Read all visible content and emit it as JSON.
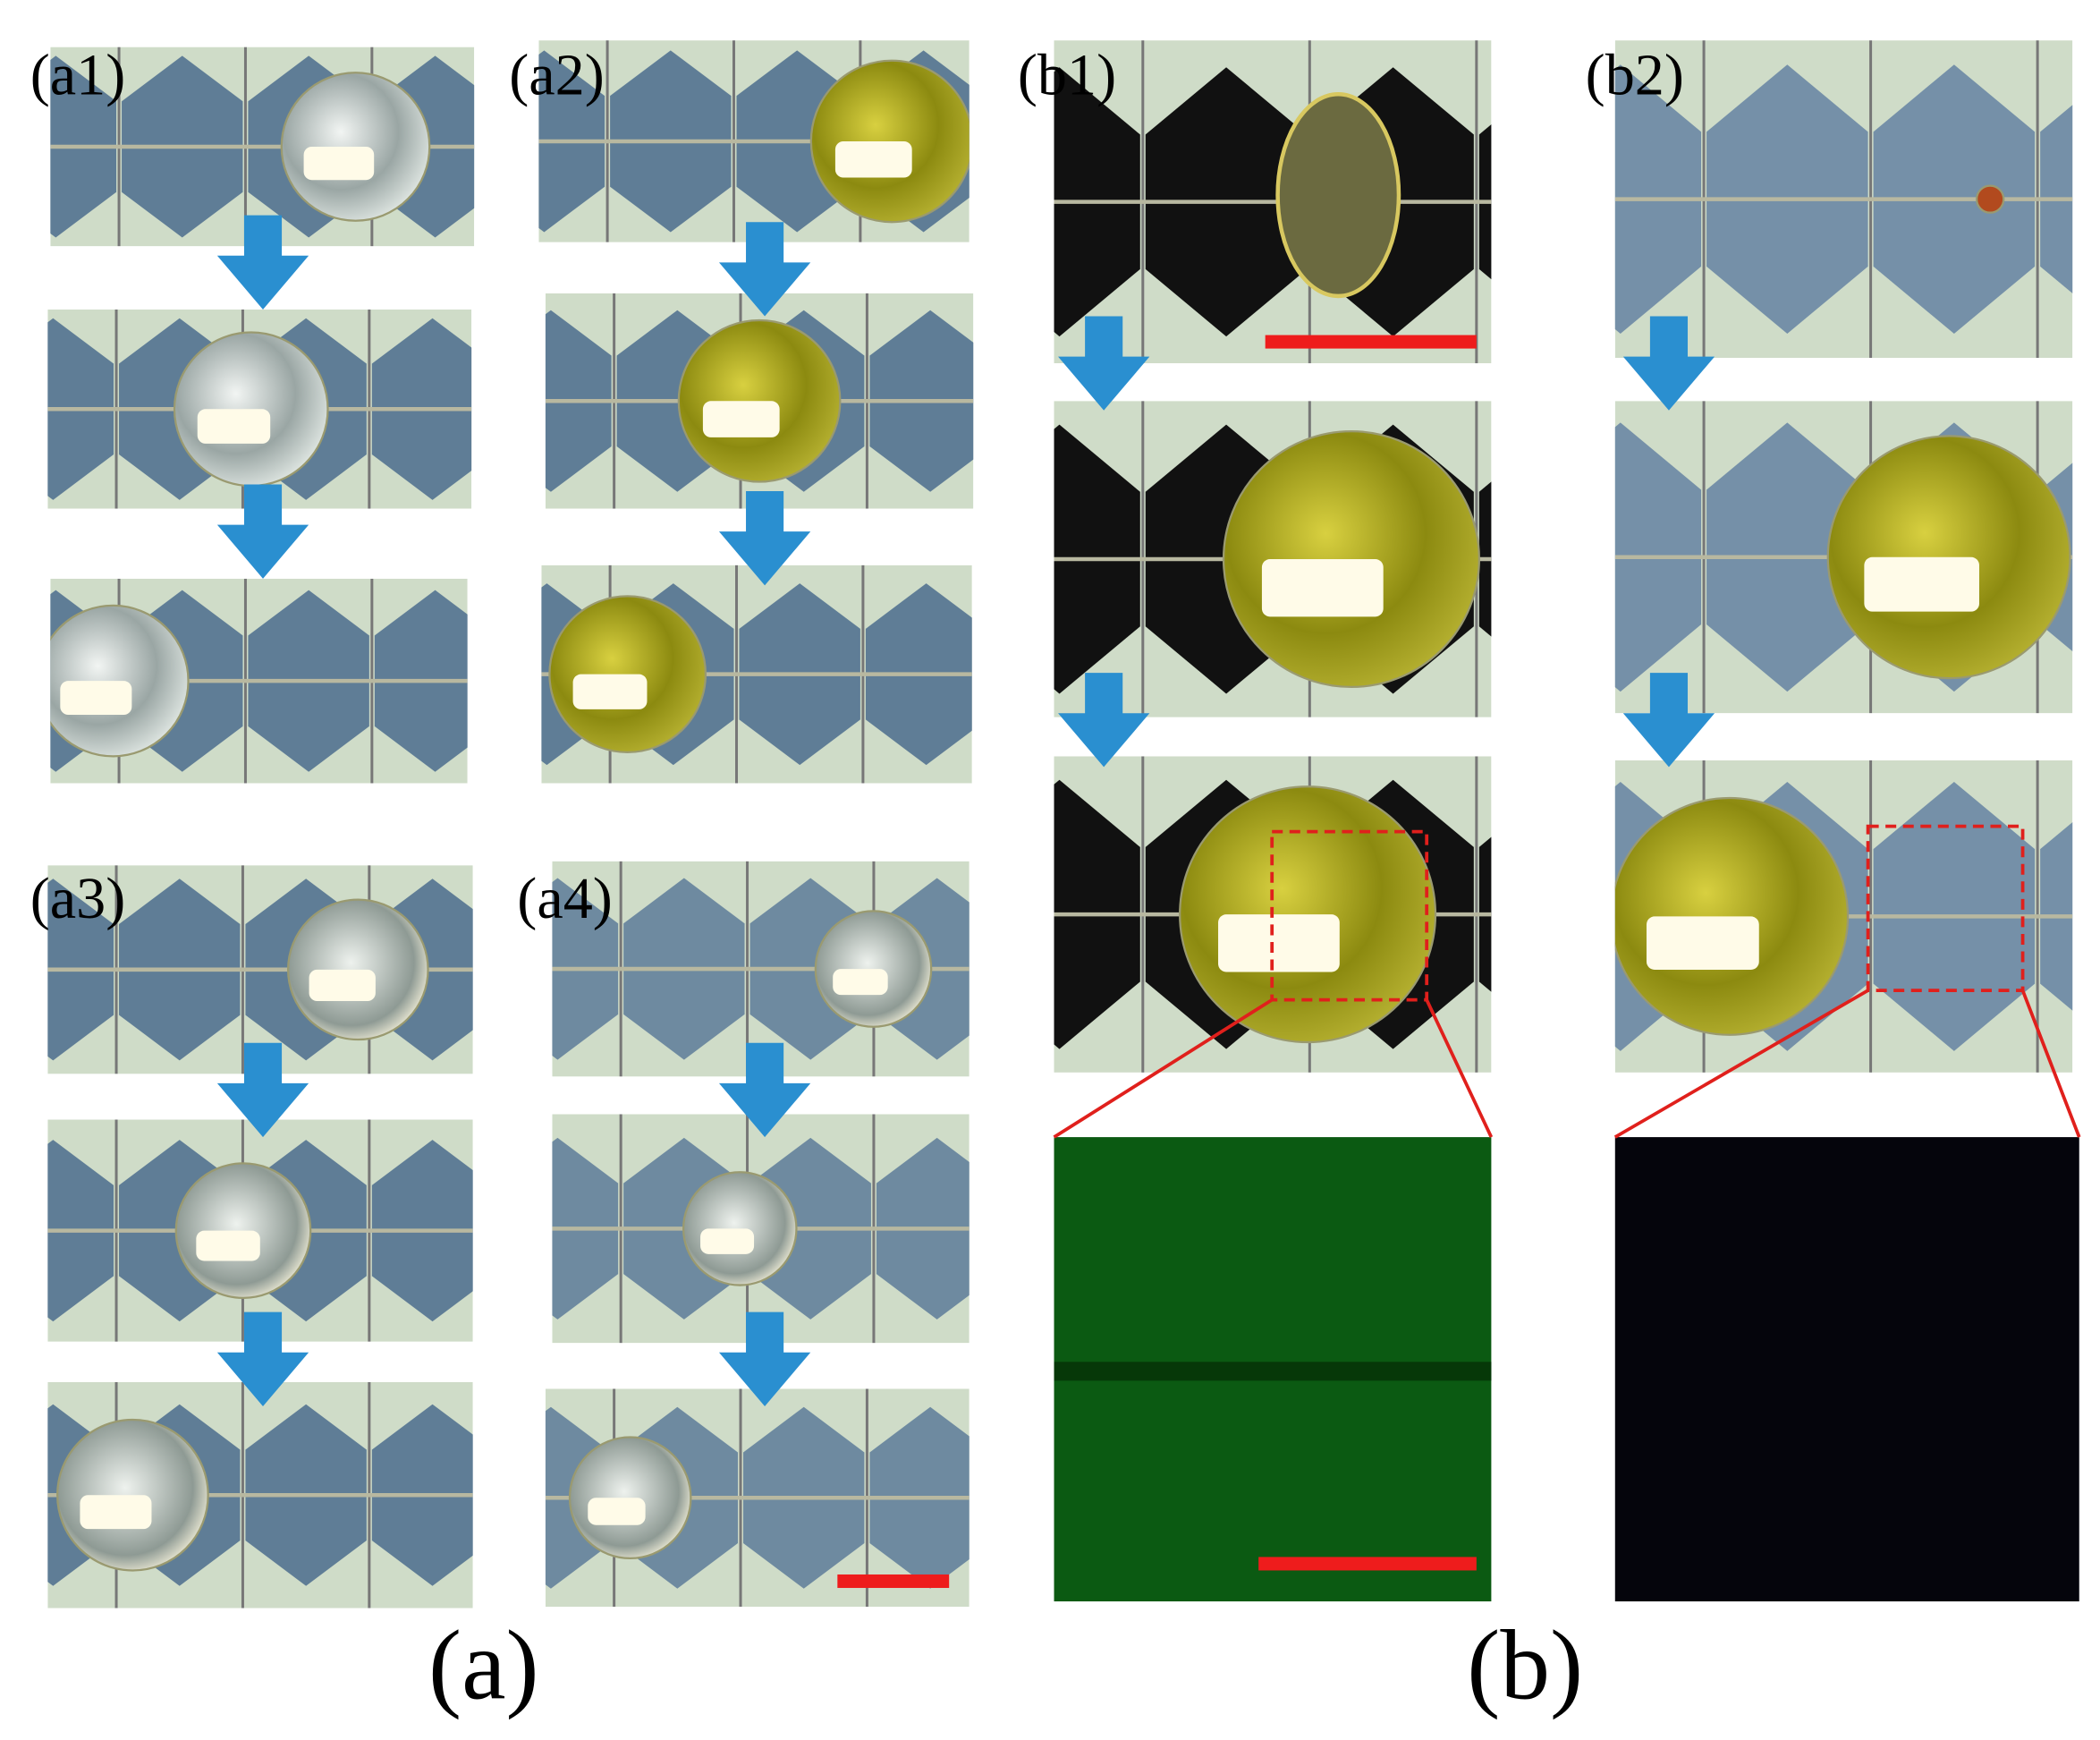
{
  "panel_labels": [
    "(a1)",
    "(a2)",
    "(a3)",
    "(a4)",
    "(b1)",
    "(b2)"
  ],
  "group_labels": [
    "(a)",
    "(b)"
  ]
}
